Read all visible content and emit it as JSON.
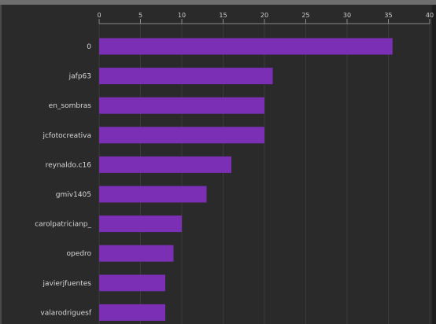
{
  "chart_data": {
    "type": "bar",
    "orientation": "horizontal",
    "categories": [
      "0",
      "jafp63",
      "en_sombras",
      "jcfotocreativa",
      "reynaldo.c16",
      "gmiv1405",
      "carolpatricianp_",
      "opedro",
      "javierjfuentes",
      "valarodriguesf"
    ],
    "values": [
      35.5,
      21,
      20,
      20,
      16,
      13,
      10,
      9,
      8,
      8
    ],
    "x_ticks": [
      "0",
      "5",
      "10",
      "15",
      "20",
      "25",
      "30",
      "35",
      "40"
    ],
    "xlim": [
      0,
      40
    ],
    "grid": true,
    "colors": {
      "bar": "#7a2fb5",
      "background": "#2a2a2a",
      "grid": "#3a3a3a",
      "text": "#d7d7d7"
    }
  }
}
